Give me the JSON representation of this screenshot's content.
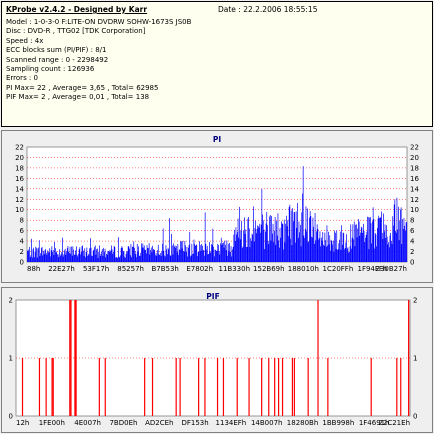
{
  "info": {
    "title": "KProbe v2.4.2 - Designed by Karr",
    "date": "Date : 22.2.2006 18:55:15",
    "lines": [
      "Model : 1-0-3-0 F:LITE-ON DVDRW SOHW-1673S JS0B",
      "Disc : DVD-R , TTG02 [TDK Corporation]",
      "Speed : 4x",
      "ECC blocks sum (PI/PIF) : 8/1",
      "Scanned range : 0 - 2298492",
      "Sampling count : 126936",
      "Errors : 0",
      "PI Max= 22 , Average= 3,65 , Total= 62985",
      "PIF Max= 2 , Average= 0,01 , Total= 138"
    ]
  },
  "colors": {
    "pi_bars": "#0000ff",
    "pif_bars": "#ff0000",
    "plot_bg": "#ffffff",
    "grid": "#ff0000"
  },
  "chart_data": [
    {
      "type": "bar",
      "title": "PI",
      "ylim": [
        0,
        22
      ],
      "y_ticks": [
        0,
        2,
        4,
        6,
        8,
        10,
        12,
        14,
        16,
        18,
        20,
        22
      ],
      "x_tick_labels": [
        "88h",
        "22E27h",
        "53F17h",
        "85257h",
        "B7B53h",
        "E7802h",
        "11B330h",
        "152B69h",
        "188010h",
        "1C20FFh",
        "1F94FFh",
        "230B27h"
      ],
      "grid": "dotted horizontal",
      "segments": [
        {
          "x_range": [
            0.0,
            0.27
          ],
          "mean": 2.2,
          "max": 8
        },
        {
          "x_range": [
            0.27,
            0.4
          ],
          "mean": 2.5,
          "max": 9
        },
        {
          "x_range": [
            0.4,
            0.545
          ],
          "mean": 3.0,
          "max": 10
        },
        {
          "x_range": [
            0.545,
            0.565
          ],
          "mean": 7.5,
          "max": 15
        },
        {
          "x_range": [
            0.565,
            0.66
          ],
          "mean": 7.0,
          "max": 15
        },
        {
          "x_range": [
            0.66,
            0.68
          ],
          "mean": 6.0,
          "max": 10
        },
        {
          "x_range": [
            0.68,
            0.76
          ],
          "mean": 8.5,
          "max": 21
        },
        {
          "x_range": [
            0.76,
            0.86
          ],
          "mean": 5.0,
          "max": 10
        },
        {
          "x_range": [
            0.86,
            0.96
          ],
          "mean": 6.0,
          "max": 12
        },
        {
          "x_range": [
            0.96,
            1.0
          ],
          "mean": 8.5,
          "max": 13
        }
      ]
    },
    {
      "type": "bar",
      "title": "PIF",
      "ylim": [
        0,
        2
      ],
      "y_ticks": [
        0,
        1,
        2
      ],
      "x_tick_labels": [
        "12h",
        "1FE00h",
        "4E007h",
        "7BD0Eh",
        "AD2CEh",
        "DF153h",
        "1134EFh",
        "14B007h",
        "18280Bh",
        "1BB998h",
        "1F4691h",
        "22C21Eh"
      ],
      "grid": "dotted horizontal",
      "bars": [
        {
          "x": 0.015,
          "v": 1
        },
        {
          "x": 0.058,
          "v": 1
        },
        {
          "x": 0.075,
          "v": 1
        },
        {
          "x": 0.09,
          "v": 1
        },
        {
          "x": 0.093,
          "v": 1
        },
        {
          "x": 0.135,
          "v": 2
        },
        {
          "x": 0.138,
          "v": 2
        },
        {
          "x": 0.148,
          "v": 2
        },
        {
          "x": 0.151,
          "v": 2
        },
        {
          "x": 0.21,
          "v": 1
        },
        {
          "x": 0.225,
          "v": 1
        },
        {
          "x": 0.325,
          "v": 1
        },
        {
          "x": 0.345,
          "v": 1
        },
        {
          "x": 0.405,
          "v": 1
        },
        {
          "x": 0.415,
          "v": 1
        },
        {
          "x": 0.462,
          "v": 1
        },
        {
          "x": 0.478,
          "v": 1
        },
        {
          "x": 0.51,
          "v": 1
        },
        {
          "x": 0.525,
          "v": 1
        },
        {
          "x": 0.56,
          "v": 1
        },
        {
          "x": 0.59,
          "v": 1
        },
        {
          "x": 0.622,
          "v": 1
        },
        {
          "x": 0.64,
          "v": 1
        },
        {
          "x": 0.655,
          "v": 1
        },
        {
          "x": 0.665,
          "v": 1
        },
        {
          "x": 0.675,
          "v": 1
        },
        {
          "x": 0.7,
          "v": 1
        },
        {
          "x": 0.705,
          "v": 1
        },
        {
          "x": 0.74,
          "v": 1
        },
        {
          "x": 0.765,
          "v": 2
        },
        {
          "x": 0.79,
          "v": 1
        },
        {
          "x": 0.9,
          "v": 1
        },
        {
          "x": 0.965,
          "v": 1
        },
        {
          "x": 0.975,
          "v": 1
        },
        {
          "x": 0.995,
          "v": 2
        }
      ]
    }
  ]
}
